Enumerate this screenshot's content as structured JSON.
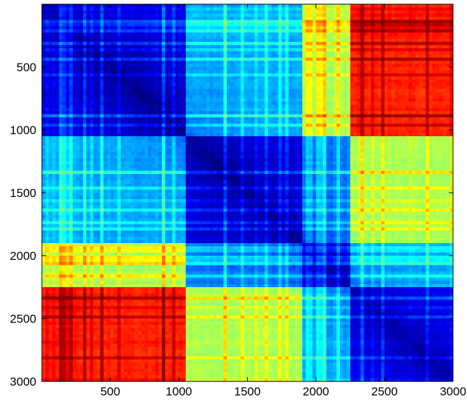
{
  "chart_data": {
    "type": "heatmap",
    "title": "",
    "xlabel": "",
    "ylabel": "",
    "colormap": "jet",
    "xlim": [
      1,
      3000
    ],
    "ylim": [
      1,
      3000
    ],
    "y_axis_direction": "down",
    "xticks": [
      500,
      1000,
      1500,
      2000,
      2500,
      3000
    ],
    "yticks": [
      500,
      1000,
      1500,
      2000,
      2500,
      3000
    ],
    "xtick_labels": [
      "500",
      "1000",
      "1500",
      "2000",
      "2500",
      "3000"
    ],
    "ytick_labels": [
      "500",
      "1000",
      "1500",
      "2000",
      "2500",
      "3000"
    ],
    "block_boundaries": [
      1050,
      1900,
      2260,
      3000
    ],
    "block_values": [
      [
        0.1,
        0.3,
        0.55,
        0.85
      ],
      [
        0.3,
        0.1,
        0.25,
        0.55
      ],
      [
        0.55,
        0.25,
        0.12,
        0.3
      ],
      [
        0.85,
        0.55,
        0.3,
        0.12
      ]
    ],
    "grid": false,
    "colorbar": false
  }
}
